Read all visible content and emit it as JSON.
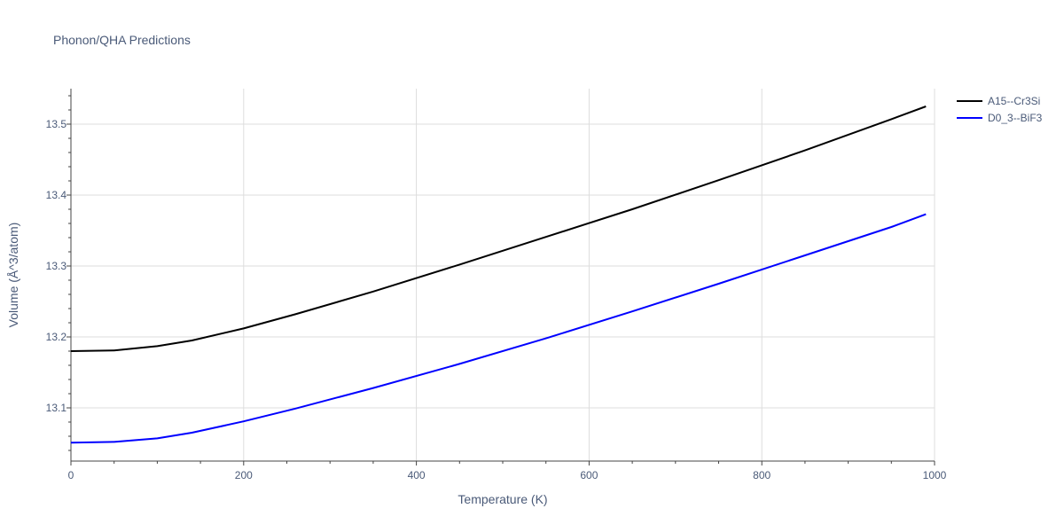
{
  "chart_data": {
    "type": "line",
    "title": "Phonon/QHA Predictions",
    "xlabel": "Temperature (K)",
    "ylabel": "Volume (Å^3/atom)",
    "xlim": [
      0,
      1000
    ],
    "ylim": [
      13.025,
      13.55
    ],
    "xticks": [
      0,
      200,
      400,
      600,
      800,
      1000
    ],
    "yticks": [
      13.1,
      13.2,
      13.3,
      13.4,
      13.5
    ],
    "xtick_labels": [
      "0",
      "200",
      "400",
      "600",
      "800",
      "1000"
    ],
    "ytick_labels": [
      "13.1",
      "13.2",
      "13.3",
      "13.4",
      "13.5"
    ],
    "grid": true,
    "legend_position": "top-right",
    "series": [
      {
        "name": "A15--Cr3Si",
        "color": "#000000",
        "x": [
          0,
          50,
          100,
          140,
          200,
          260,
          350,
          450,
          550,
          650,
          750,
          850,
          950,
          990
        ],
        "y": [
          13.18,
          13.181,
          13.187,
          13.195,
          13.212,
          13.232,
          13.264,
          13.302,
          13.341,
          13.38,
          13.421,
          13.463,
          13.507,
          13.525
        ]
      },
      {
        "name": "D0_3--BiF3",
        "color": "#0000ff",
        "x": [
          0,
          50,
          100,
          140,
          200,
          260,
          350,
          450,
          550,
          650,
          750,
          850,
          950,
          990
        ],
        "y": [
          13.051,
          13.052,
          13.057,
          13.065,
          13.081,
          13.099,
          13.128,
          13.162,
          13.198,
          13.236,
          13.275,
          13.315,
          13.355,
          13.373
        ]
      }
    ]
  }
}
